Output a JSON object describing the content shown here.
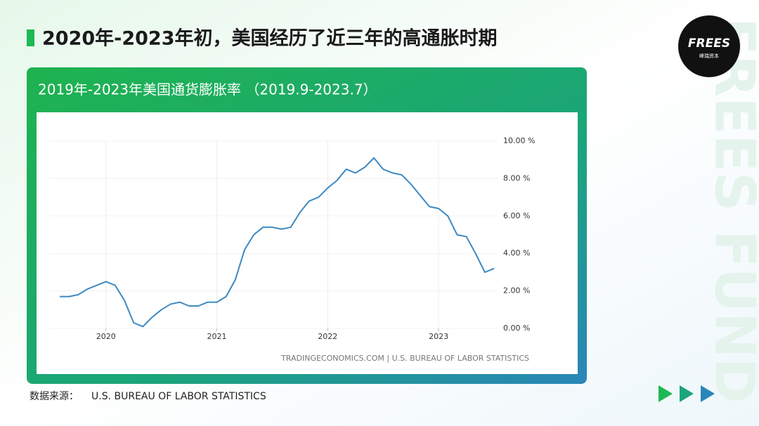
{
  "page_title": "2020年-2023年初，美国经历了近三年的高通胀时期",
  "logo": {
    "text": "FREES",
    "subtext": "峰瑞资本"
  },
  "watermark": "FREES FUND",
  "source_label": "数据来源：",
  "source": "U.S. BUREAU OF LABOR STATISTICS",
  "chart_data": {
    "type": "line",
    "title": "2019年-2023年美国通货膨胀率 （2019.9-2023.7）",
    "credit": "TRADINGECONOMICS.COM | U.S. BUREAU OF LABOR STATISTICS",
    "categories": [
      null,
      null,
      null,
      null,
      null,
      "2020",
      null,
      null,
      null,
      null,
      null,
      null,
      null,
      null,
      null,
      null,
      null,
      "2021",
      null,
      null,
      null,
      null,
      null,
      null,
      null,
      null,
      null,
      null,
      null,
      "2022",
      null,
      null,
      null,
      null,
      null,
      null,
      null,
      null,
      null,
      null,
      null,
      "2023",
      null,
      null,
      null,
      null,
      null,
      null
    ],
    "values": [
      1.7,
      1.7,
      1.8,
      2.1,
      2.3,
      2.5,
      2.3,
      1.5,
      0.3,
      0.1,
      0.6,
      1.0,
      1.3,
      1.4,
      1.2,
      1.2,
      1.4,
      1.4,
      1.7,
      2.6,
      4.2,
      5.0,
      5.4,
      5.4,
      5.3,
      5.4,
      6.2,
      6.8,
      7.0,
      7.5,
      7.9,
      8.5,
      8.3,
      8.6,
      9.1,
      8.5,
      8.3,
      8.2,
      7.7,
      7.1,
      6.5,
      6.4,
      6.0,
      5.0,
      4.9,
      4.0,
      3.0,
      3.2
    ],
    "color": "#3d89c2",
    "ylim": [
      0,
      10
    ],
    "yticks": [
      {
        "value": 0,
        "label": "0.00 %"
      },
      {
        "value": 2,
        "label": "2.00 %"
      },
      {
        "value": 4,
        "label": "4.00 %"
      },
      {
        "value": 6,
        "label": "6.00 %"
      },
      {
        "value": 8,
        "label": "8.00 %"
      },
      {
        "value": 10,
        "label": "10.00 %"
      }
    ],
    "grid": true
  }
}
